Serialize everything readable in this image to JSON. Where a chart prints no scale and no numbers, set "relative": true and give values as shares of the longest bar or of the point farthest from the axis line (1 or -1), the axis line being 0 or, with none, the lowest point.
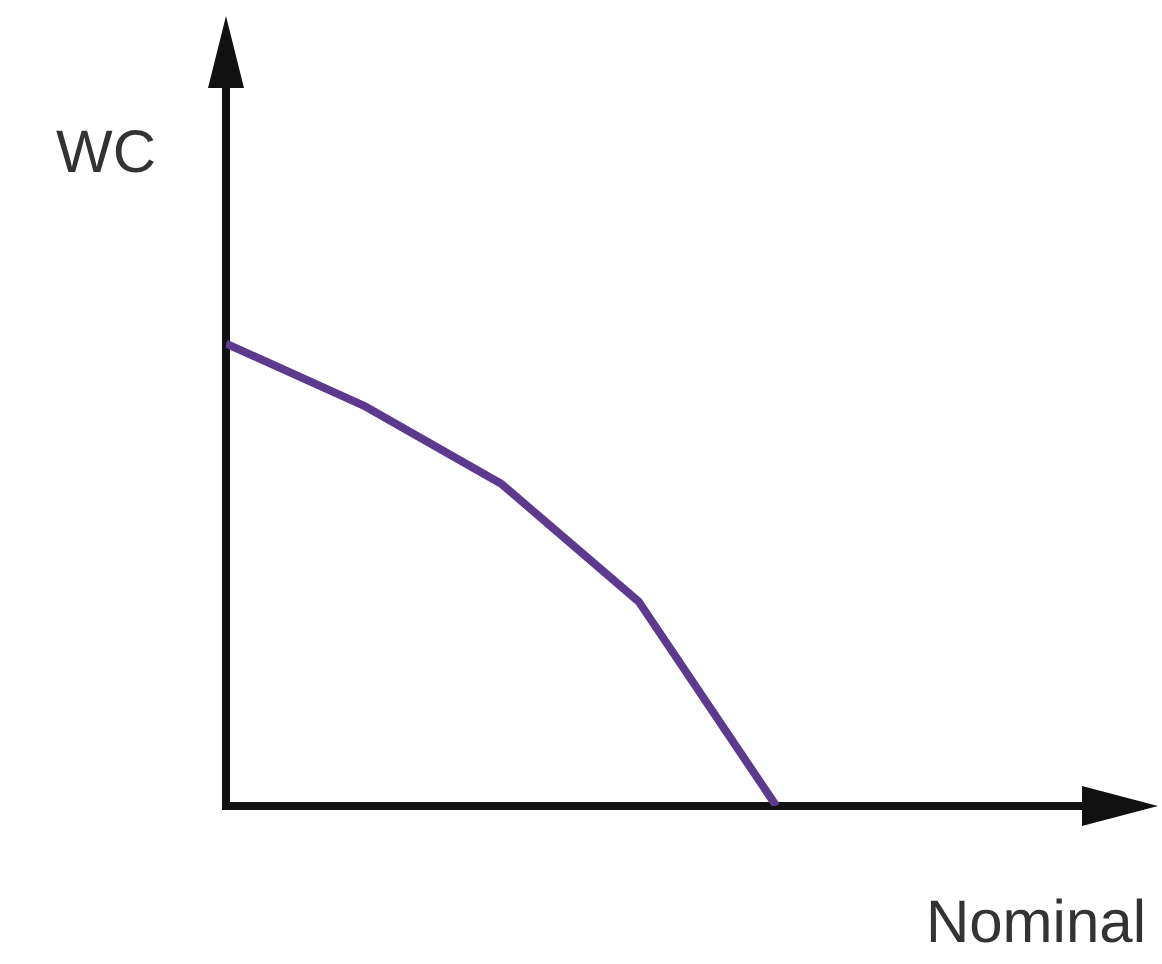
{
  "chart_data": {
    "type": "line",
    "relative": true,
    "xlabel": "Nominal",
    "ylabel": "WC",
    "categories": [
      null,
      null,
      null,
      null,
      null
    ],
    "series": [
      {
        "color": "#5c3b8e",
        "values": [
          1,
          0.866,
          0.697,
          0.442,
          0
        ]
      }
    ],
    "grid": false,
    "legend": false,
    "marker": "none",
    "line_style": "solid"
  }
}
